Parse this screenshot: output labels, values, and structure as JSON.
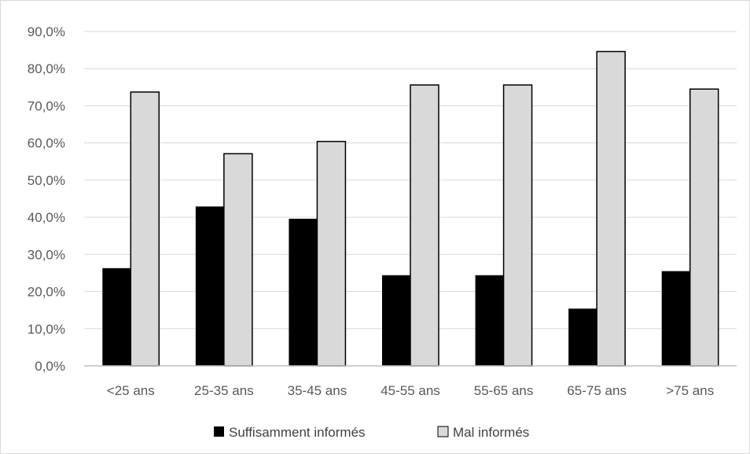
{
  "chart_data": {
    "type": "bar",
    "title": "",
    "xlabel": "",
    "ylabel": "",
    "categories": [
      "<25 ans",
      "25-35 ans",
      "35-45 ans",
      "45-55 ans",
      "55-65 ans",
      "65-75 ans",
      ">75 ans"
    ],
    "series": [
      {
        "name": "Suffisamment informés",
        "values": [
          26.3,
          42.9,
          39.6,
          24.4,
          24.4,
          15.4,
          25.5
        ],
        "color": "#000000"
      },
      {
        "name": "Mal informés",
        "values": [
          73.7,
          57.1,
          60.4,
          75.6,
          75.6,
          84.6,
          74.5
        ],
        "color": "#d9d9d9"
      }
    ],
    "ylim": [
      0,
      90
    ],
    "yticks": [
      "0,0%",
      "10,0%",
      "20,0%",
      "30,0%",
      "40,0%",
      "50,0%",
      "60,0%",
      "70,0%",
      "80,0%",
      "90,0%"
    ],
    "grid": true,
    "legend_position": "bottom"
  }
}
